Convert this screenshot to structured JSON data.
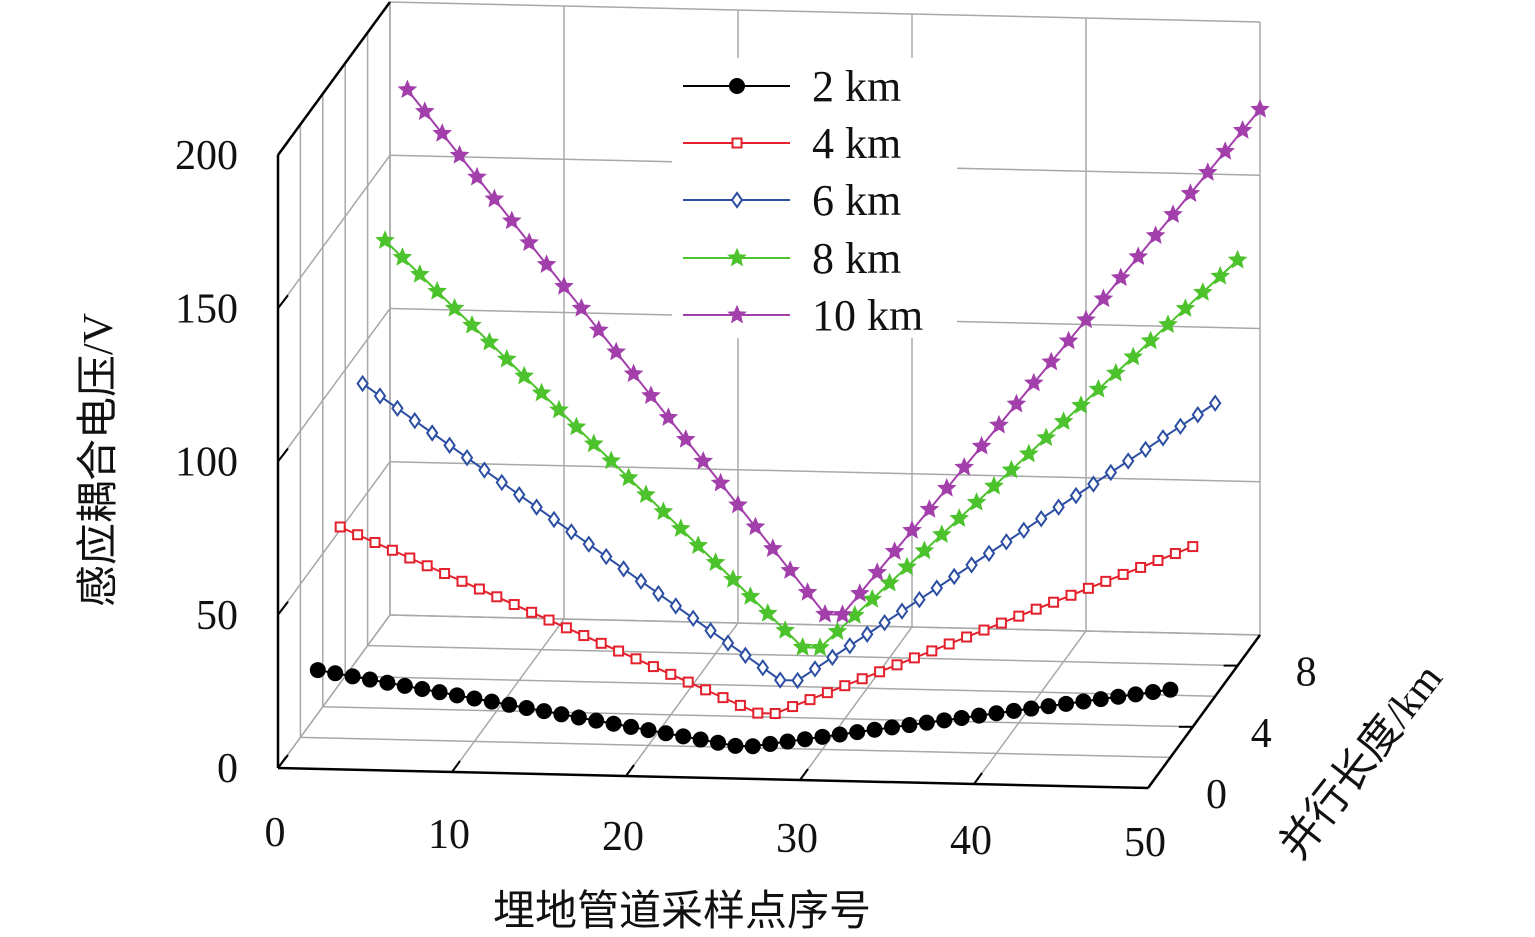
{
  "chart_data": {
    "type": "line",
    "projection": "3d",
    "xlabel": "埋地管道采样点序号",
    "ylabel": "感应耦合电压/V",
    "zlabel": "并行长度/km",
    "xlim": [
      0,
      50
    ],
    "ylim": [
      0,
      200
    ],
    "zlim": [
      0,
      10
    ],
    "x_ticks": [
      "0",
      "10",
      "20",
      "30",
      "40",
      "50"
    ],
    "y_ticks": [
      "0",
      "50",
      "100",
      "150",
      "200"
    ],
    "z_ticks": [
      "0",
      "4",
      "8"
    ],
    "grid": true,
    "legend_position": "top-center",
    "x": [
      1,
      2,
      3,
      4,
      5,
      6,
      7,
      8,
      9,
      10,
      11,
      12,
      13,
      14,
      15,
      16,
      17,
      18,
      19,
      20,
      21,
      22,
      23,
      24,
      25,
      26,
      27,
      28,
      29,
      30,
      31,
      32,
      33,
      34,
      35,
      36,
      37,
      38,
      39,
      40,
      41,
      42,
      43,
      44,
      45,
      46,
      47,
      48,
      49,
      50
    ],
    "series": [
      {
        "name": "2 km",
        "depth": 2,
        "color": "#000000",
        "marker": "circle",
        "values": [
          22.1,
          21.2,
          20.3,
          19.4,
          18.5,
          17.6,
          16.7,
          15.8,
          14.9,
          14.0,
          13.1,
          12.2,
          11.3,
          10.4,
          9.5,
          8.6,
          7.7,
          6.8,
          5.9,
          5.0,
          4.1,
          3.2,
          2.3,
          1.4,
          0.5,
          0.5,
          1.4,
          2.3,
          3.2,
          4.1,
          5.0,
          5.9,
          6.8,
          7.7,
          8.6,
          9.5,
          10.4,
          11.3,
          12.2,
          13.1,
          14.0,
          14.9,
          15.8,
          16.7,
          17.6,
          18.5,
          19.4,
          20.3,
          21.2,
          22.1
        ]
      },
      {
        "name": "4 km",
        "depth": 4,
        "color": "#e3202b",
        "marker": "square",
        "values": [
          58.8,
          56.4,
          54.0,
          51.6,
          49.2,
          46.8,
          44.4,
          42.0,
          39.6,
          37.2,
          34.8,
          32.4,
          30.0,
          27.6,
          25.2,
          22.8,
          20.4,
          18.0,
          15.6,
          13.2,
          10.8,
          8.4,
          6.0,
          3.6,
          1.2,
          1.2,
          3.6,
          6.0,
          8.4,
          10.8,
          13.2,
          15.6,
          18.0,
          20.4,
          22.8,
          25.2,
          27.6,
          30.0,
          32.4,
          34.8,
          37.2,
          39.6,
          42.0,
          44.4,
          46.8,
          49.2,
          51.6,
          54.0,
          56.4,
          58.8
        ]
      },
      {
        "name": "6 km",
        "depth": 6,
        "color": "#2b4ea3",
        "marker": "diamond",
        "values": [
          95.6,
          91.7,
          87.8,
          83.9,
          80.0,
          76.1,
          72.2,
          68.3,
          64.4,
          60.5,
          56.6,
          52.7,
          48.8,
          44.9,
          41.0,
          37.1,
          33.2,
          29.3,
          25.4,
          21.5,
          17.6,
          13.7,
          9.8,
          5.9,
          2.0,
          2.0,
          5.9,
          9.8,
          13.7,
          17.6,
          21.5,
          25.4,
          29.3,
          33.2,
          37.1,
          41.0,
          44.9,
          48.8,
          52.7,
          56.6,
          60.5,
          64.4,
          68.3,
          72.2,
          76.1,
          80.0,
          83.9,
          87.8,
          91.7,
          95.6
        ]
      },
      {
        "name": "8 km",
        "depth": 8,
        "color": "#4cc22c",
        "marker": "star",
        "values": [
          132.3,
          126.9,
          121.5,
          116.1,
          110.7,
          105.3,
          99.9,
          94.5,
          89.1,
          83.7,
          78.3,
          72.9,
          67.5,
          62.1,
          56.7,
          51.3,
          45.9,
          40.5,
          35.1,
          29.7,
          24.3,
          18.9,
          13.5,
          8.1,
          2.7,
          2.7,
          8.1,
          13.5,
          18.9,
          24.3,
          29.7,
          35.1,
          40.5,
          45.9,
          51.3,
          56.7,
          62.1,
          67.5,
          72.9,
          78.3,
          83.7,
          89.1,
          94.5,
          99.9,
          105.3,
          110.7,
          116.1,
          121.5,
          126.9,
          132.3
        ]
      },
      {
        "name": "10 km",
        "depth": 10,
        "color": "#a23fab",
        "marker": "star",
        "values": [
          171.5,
          164.5,
          157.5,
          150.5,
          143.5,
          136.5,
          129.5,
          122.5,
          115.5,
          108.5,
          101.5,
          94.5,
          87.5,
          80.5,
          73.5,
          66.5,
          59.5,
          52.5,
          45.5,
          38.5,
          31.5,
          24.5,
          17.5,
          10.5,
          3.5,
          3.5,
          10.5,
          17.5,
          24.5,
          31.5,
          38.5,
          45.5,
          52.5,
          59.5,
          66.5,
          73.5,
          80.5,
          87.5,
          94.5,
          101.5,
          108.5,
          115.5,
          122.5,
          129.5,
          136.5,
          143.5,
          150.5,
          157.5,
          164.5,
          171.5
        ]
      }
    ]
  }
}
